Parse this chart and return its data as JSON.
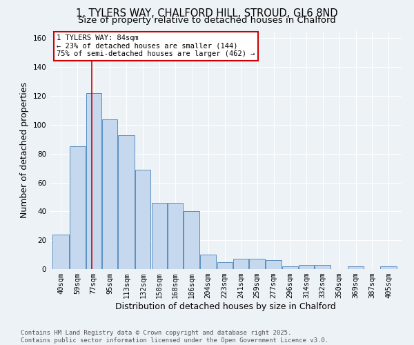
{
  "title1": "1, TYLERS WAY, CHALFORD HILL, STROUD, GL6 8ND",
  "title2": "Size of property relative to detached houses in Chalford",
  "xlabel": "Distribution of detached houses by size in Chalford",
  "ylabel": "Number of detached properties",
  "bar_values": [
    24,
    85,
    122,
    104,
    93,
    69,
    46,
    46,
    40,
    10,
    5,
    7,
    7,
    6,
    2,
    3,
    3,
    0,
    2,
    0,
    2
  ],
  "bin_labels": [
    "40sqm",
    "59sqm",
    "77sqm",
    "95sqm",
    "113sqm",
    "132sqm",
    "150sqm",
    "168sqm",
    "186sqm",
    "204sqm",
    "223sqm",
    "241sqm",
    "259sqm",
    "277sqm",
    "296sqm",
    "314sqm",
    "332sqm",
    "350sqm",
    "369sqm",
    "387sqm",
    "405sqm"
  ],
  "bin_edges": [
    40,
    59,
    77,
    95,
    113,
    132,
    150,
    168,
    186,
    204,
    223,
    241,
    259,
    277,
    296,
    314,
    332,
    350,
    369,
    387,
    405,
    424
  ],
  "bar_color": "#c5d8ed",
  "bar_edge_color": "#5a8fc0",
  "red_line_x": 84,
  "ylim": [
    0,
    165
  ],
  "yticks": [
    0,
    20,
    40,
    60,
    80,
    100,
    120,
    140,
    160
  ],
  "annotation_title": "1 TYLERS WAY: 84sqm",
  "annotation_line1": "← 23% of detached houses are smaller (144)",
  "annotation_line2": "75% of semi-detached houses are larger (462) →",
  "annotation_box_color": "#ffffff",
  "annotation_box_edge": "#cc0000",
  "footer1": "Contains HM Land Registry data © Crown copyright and database right 2025.",
  "footer2": "Contains public sector information licensed under the Open Government Licence v3.0.",
  "background_color": "#edf2f7",
  "grid_color": "#ffffff",
  "title_fontsize": 10.5,
  "subtitle_fontsize": 9.5,
  "axis_label_fontsize": 9,
  "tick_fontsize": 7.5,
  "footer_fontsize": 6.5,
  "ann_fontsize": 7.5
}
